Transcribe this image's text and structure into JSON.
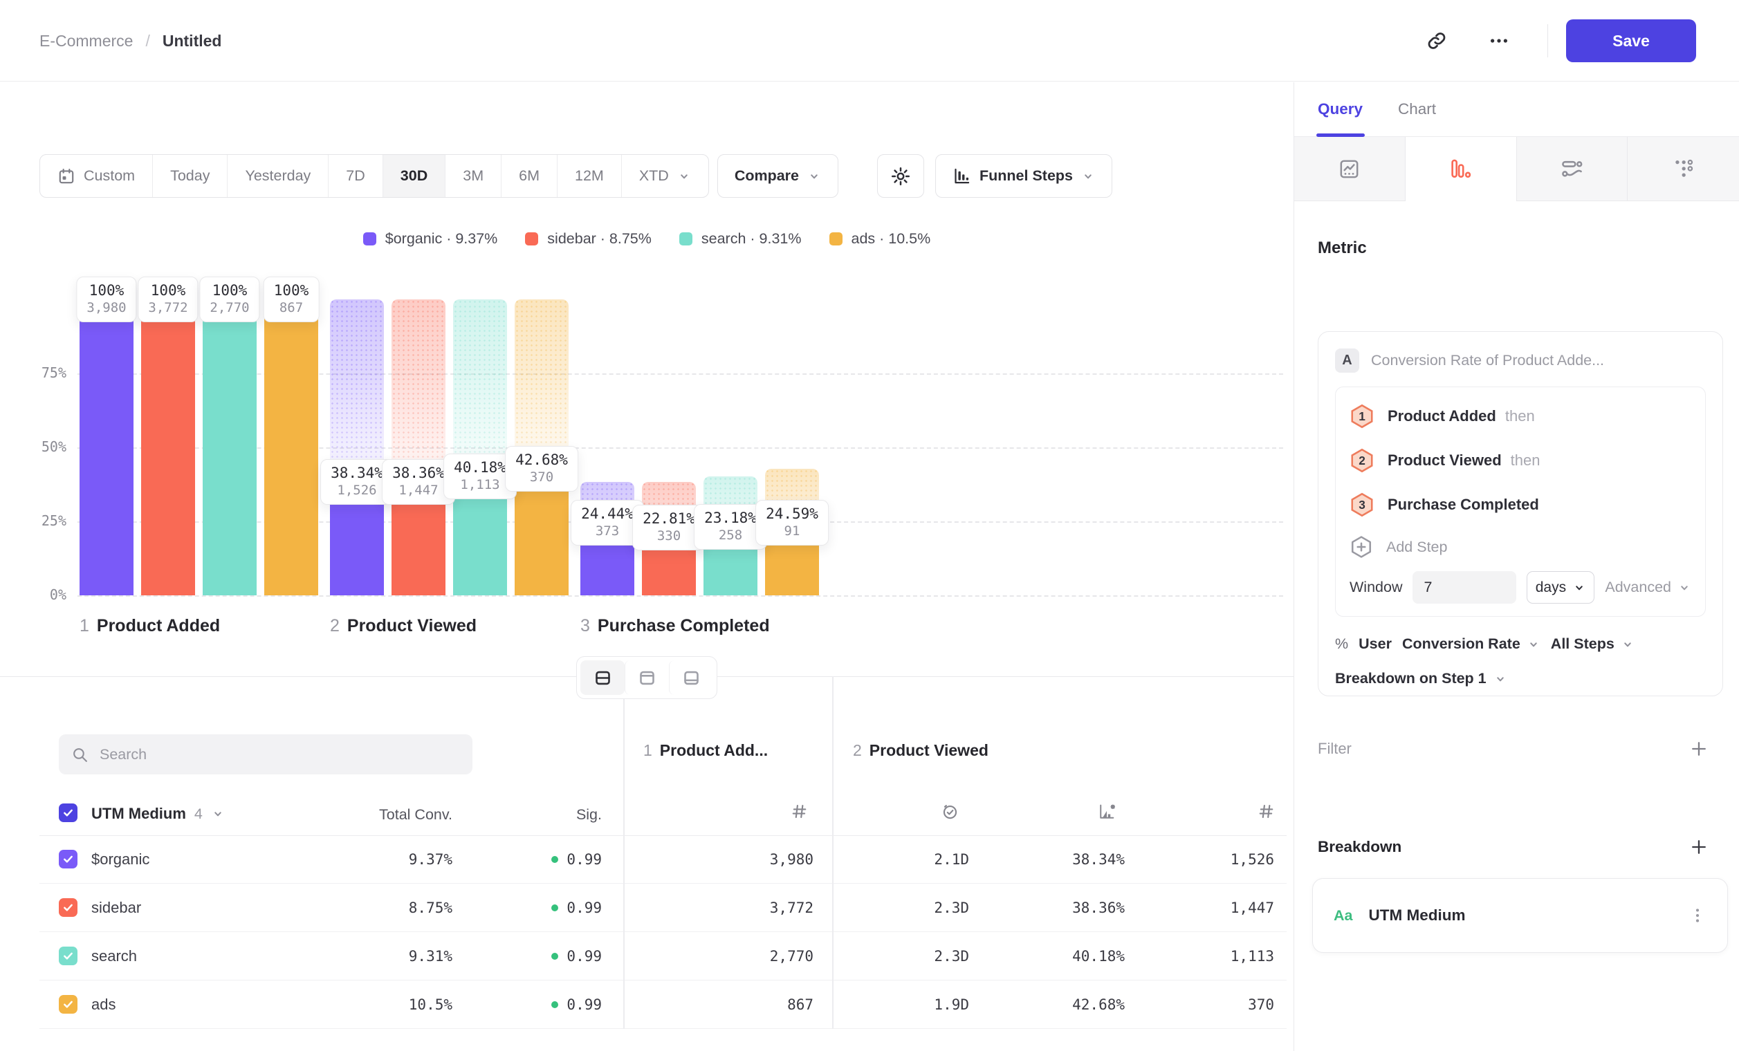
{
  "topbar": {
    "project": "E-Commerce",
    "sep": "/",
    "doc_title": "Untitled",
    "save_label": "Save"
  },
  "toolbar": {
    "date_ranges": [
      {
        "label": "Custom",
        "icon": "calendar"
      },
      {
        "label": "Today"
      },
      {
        "label": "Yesterday"
      },
      {
        "label": "7D"
      },
      {
        "label": "30D",
        "active": true
      },
      {
        "label": "3M"
      },
      {
        "label": "6M"
      },
      {
        "label": "12M"
      },
      {
        "label": "XTD",
        "chevron": true
      }
    ],
    "compare_label": "Compare",
    "view_selector_label": "Funnel Steps"
  },
  "layout_switcher": {
    "options": [
      {
        "name": "split-horizontal",
        "active": true
      },
      {
        "name": "panel-top",
        "active": false
      },
      {
        "name": "panel-bottom",
        "active": false
      }
    ]
  },
  "chart_data": {
    "type": "bar",
    "subtype": "funnel-steps-grouped",
    "title": "",
    "categories": [
      "Product Added",
      "Product Viewed",
      "Purchase Completed"
    ],
    "ylabels": [
      "0%",
      "25%",
      "50%",
      "75%"
    ],
    "ylim": [
      0,
      100
    ],
    "grid": "dashed-horizontal",
    "legend_position": "top-center",
    "legend_separator": "·",
    "series": [
      {
        "name": "$organic",
        "color": "#7a5af8",
        "overall_conversion": "9.37%",
        "values_pct": [
          100,
          38.34,
          24.44
        ],
        "counts": [
          3980,
          1526,
          373
        ],
        "pct_labels": [
          "100%",
          "38.34%",
          "24.44%"
        ],
        "count_labels": [
          "3,980",
          "1,526",
          "373"
        ]
      },
      {
        "name": "sidebar",
        "color": "#f96a55",
        "overall_conversion": "8.75%",
        "values_pct": [
          100,
          38.36,
          22.81
        ],
        "counts": [
          3772,
          1447,
          330
        ],
        "pct_labels": [
          "100%",
          "38.36%",
          "22.81%"
        ],
        "count_labels": [
          "3,772",
          "1,447",
          "330"
        ]
      },
      {
        "name": "search",
        "color": "#79decc",
        "overall_conversion": "9.31%",
        "values_pct": [
          100,
          40.18,
          23.18
        ],
        "counts": [
          2770,
          1113,
          258
        ],
        "pct_labels": [
          "100%",
          "40.18%",
          "23.18%"
        ],
        "count_labels": [
          "2,770",
          "1,113",
          "258"
        ]
      },
      {
        "name": "ads",
        "color": "#f3b443",
        "overall_conversion": "10.5%",
        "values_pct": [
          100,
          42.68,
          24.59
        ],
        "counts": [
          867,
          370,
          91
        ],
        "pct_labels": [
          "100%",
          "42.68%",
          "24.59%"
        ],
        "count_labels": [
          "867",
          "370",
          "91"
        ]
      }
    ]
  },
  "table": {
    "search_placeholder": "Search",
    "header": {
      "group": "UTM Medium",
      "group_count": "4",
      "total": "Total Conv.",
      "sig": "Sig.",
      "step1_num": "1",
      "step1_label": "Product Add...",
      "step2_num": "2",
      "step2_label": "Product Viewed"
    },
    "rows": [
      {
        "name": "$organic",
        "color": "#7a5af8",
        "total_conv": "9.37%",
        "sig": "0.99",
        "step1_count": "3,980",
        "step2_time": "2.1D",
        "step2_conv": "38.34%",
        "step2_count": "1,526"
      },
      {
        "name": "sidebar",
        "color": "#f96a55",
        "total_conv": "8.75%",
        "sig": "0.99",
        "step1_count": "3,772",
        "step2_time": "2.3D",
        "step2_conv": "38.36%",
        "step2_count": "1,447"
      },
      {
        "name": "search",
        "color": "#79decc",
        "total_conv": "9.31%",
        "sig": "0.99",
        "step1_count": "2,770",
        "step2_time": "2.3D",
        "step2_conv": "40.18%",
        "step2_count": "1,113"
      },
      {
        "name": "ads",
        "color": "#f3b443",
        "total_conv": "10.5%",
        "sig": "0.99",
        "step1_count": "867",
        "step2_time": "1.9D",
        "step2_conv": "42.68%",
        "step2_count": "370"
      }
    ]
  },
  "sidebar": {
    "tabs": [
      {
        "label": "Query",
        "active": true
      },
      {
        "label": "Chart",
        "active": false
      }
    ],
    "chart_type_tabs": [
      {
        "name": "insights",
        "active": false
      },
      {
        "name": "funnel",
        "active": true
      },
      {
        "name": "flows",
        "active": false
      },
      {
        "name": "retention",
        "active": false
      }
    ],
    "metric_heading": "Metric",
    "metric": {
      "badge": "A",
      "title": "Conversion Rate of Product Adde...",
      "steps": [
        {
          "num": "1",
          "name": "Product Added",
          "suffix": "then"
        },
        {
          "num": "2",
          "name": "Product Viewed",
          "suffix": "then"
        },
        {
          "num": "3",
          "name": "Purchase Completed",
          "suffix": ""
        }
      ],
      "add_step_label": "Add Step",
      "window": {
        "label": "Window",
        "value": "7",
        "unit": "days",
        "advanced_label": "Advanced"
      },
      "measure": {
        "unit_symbol": "%",
        "entity": "User",
        "metric": "Conversion Rate",
        "scope": "All Steps"
      },
      "breakdown_on_label": "Breakdown on Step 1"
    },
    "filter": {
      "label": "Filter"
    },
    "breakdown": {
      "heading": "Breakdown",
      "item": {
        "type_label": "Aa",
        "name": "UTM Medium"
      }
    }
  },
  "colors": {
    "accent_indigo": "#4d42e1",
    "series_purple": "#7a5af8",
    "series_red": "#f96a55",
    "series_teal": "#79decc",
    "series_amber": "#f3b443",
    "sig_green": "#35c17c",
    "funnel_tab_orange": "#f96a55"
  }
}
